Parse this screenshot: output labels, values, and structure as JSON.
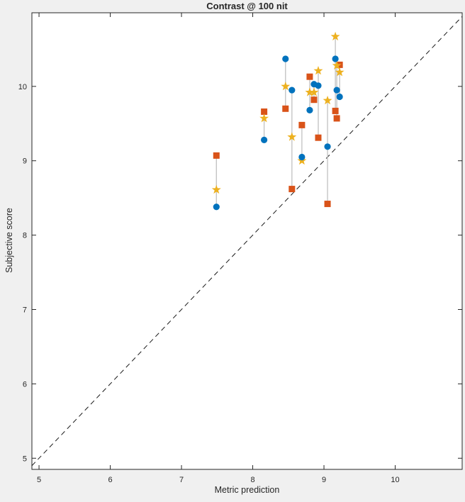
{
  "figure": {
    "background_color": "#f0f0f0",
    "plot_background": "#ffffff",
    "axis_color": "#262626"
  },
  "chart_data": {
    "type": "scatter",
    "title": "Contrast @ 100 nit",
    "xlabel": "Metric prediction",
    "ylabel": "Subjective score",
    "xlim": [
      4.9,
      10.94
    ],
    "ylim": [
      4.85,
      10.99
    ],
    "xticks": [
      5,
      6,
      7,
      8,
      9,
      10
    ],
    "yticks": [
      5,
      6,
      7,
      8,
      9,
      10
    ],
    "grid": false,
    "legend": false,
    "axis_color": "#262626",
    "identity_line": {
      "equation": "y=x",
      "style": "dashed",
      "color": "#1a1a1a"
    },
    "connector_color": "#c5c5c5",
    "x": [
      7.49,
      8.16,
      8.46,
      8.55,
      8.69,
      8.8,
      8.86,
      8.92,
      9.05,
      9.16,
      9.18,
      9.22
    ],
    "series": [
      {
        "name": "circle-markers",
        "marker": "circle",
        "color": "#0072bd",
        "values": [
          8.38,
          9.28,
          10.37,
          9.95,
          9.05,
          9.68,
          10.03,
          10.01,
          9.19,
          10.37,
          9.95,
          9.86
        ]
      },
      {
        "name": "square-markers",
        "marker": "square",
        "color": "#d95319",
        "values": [
          9.07,
          9.66,
          9.7,
          8.62,
          9.48,
          10.13,
          9.82,
          9.31,
          8.42,
          9.67,
          9.57,
          10.29
        ]
      },
      {
        "name": "star-markers",
        "marker": "star",
        "color": "#edb120",
        "values": [
          8.61,
          9.57,
          10.0,
          9.32,
          9.0,
          9.92,
          9.92,
          10.21,
          9.81,
          10.67,
          10.28,
          10.19
        ]
      }
    ]
  }
}
